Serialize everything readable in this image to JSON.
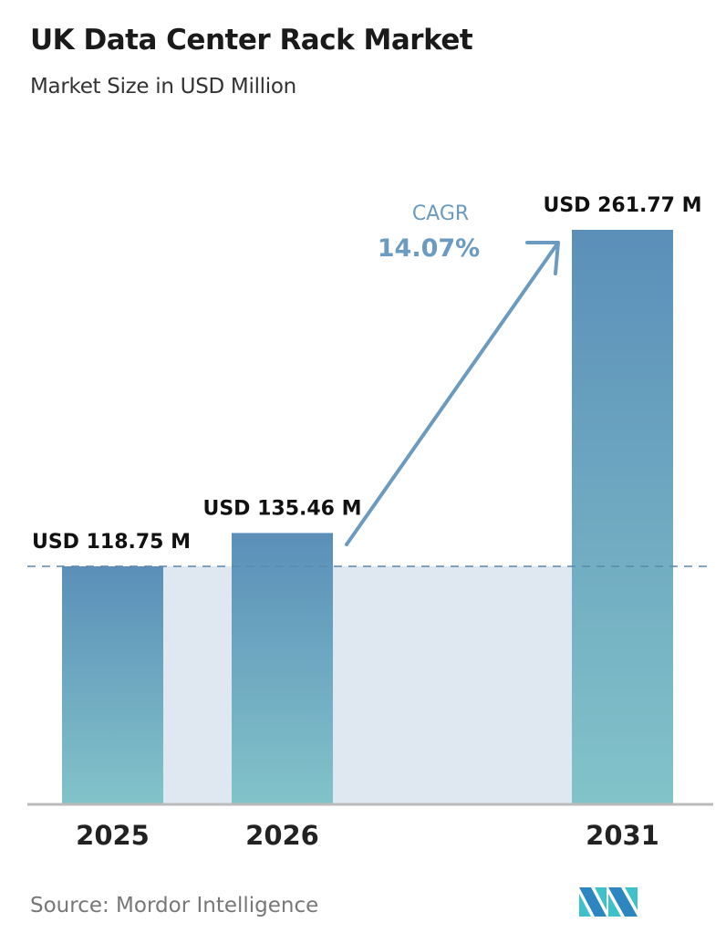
{
  "chart_data": {
    "type": "bar",
    "title": "UK Data Center Rack Market",
    "subtitle": "Market Size in USD Million",
    "categories": [
      "2025",
      "2026",
      "2031"
    ],
    "values": [
      118.75,
      135.46,
      261.77
    ],
    "data_labels": [
      "USD 118.75 M",
      "USD 135.46 M",
      "USD 261.77 M"
    ],
    "annotation": {
      "label": "CAGR",
      "value": "14.07%"
    },
    "reference_line": "dashed at 2025 value",
    "grid": false,
    "colors": {
      "bar_top": "#5b8fb9",
      "bar_bottom": "#82c3c9",
      "shade": "#dfe8f0",
      "cagr": "#6b9bc0"
    }
  },
  "source": "Source:  Mordor Intelligence",
  "logo_text": "Mordor Intelligence"
}
